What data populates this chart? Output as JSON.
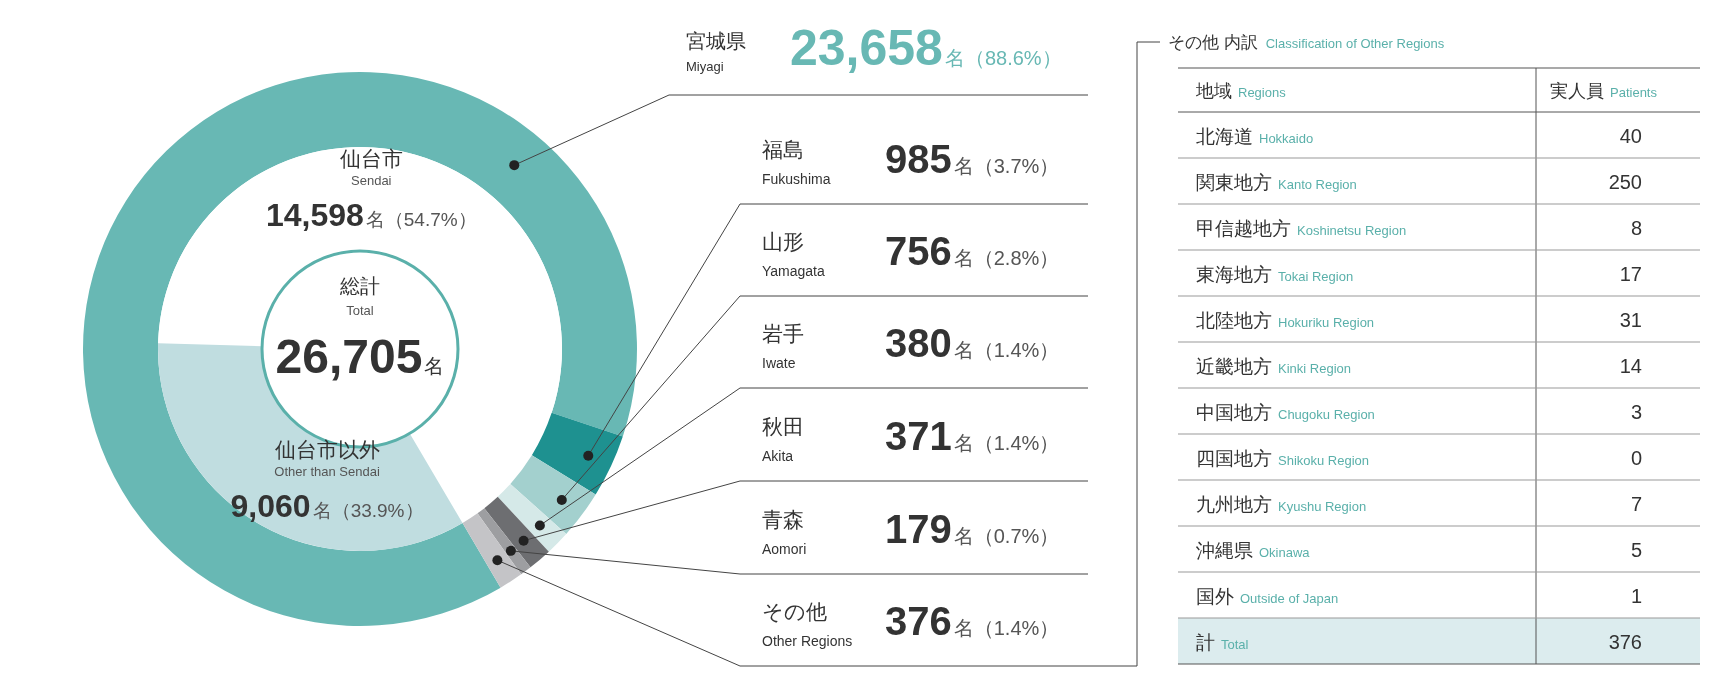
{
  "chart_data": [
    {
      "type": "donut",
      "categories": [
        "宮城県\nMiyagi",
        "福島\nFukushima",
        "山形\nYamagata",
        "岩手\nIwate",
        "秋田\nAkita",
        "青森\nAomori",
        "その他\nOther Regions"
      ],
      "values": [
        23658,
        985,
        756,
        380,
        371,
        179,
        376
      ],
      "colors": [
        "#68b8b4",
        "#1e9190",
        "#a3d0ce",
        "#d5e9e8",
        "#6d6e71",
        "#9d9ea1",
        "#c4c4c7"
      ],
      "value_labels": [
        "23,658名（88.6%）",
        "985名（3.7%）",
        "756名（2.8%）",
        "380名（1.4%）",
        "371名（1.4%）",
        "179名（0.7%）",
        "376名（1.4%）"
      ]
    },
    {
      "type": "donut",
      "categories": [
        "仙台市\nSendai",
        "仙台市以外\nOther than Sendai"
      ],
      "values": [
        14598,
        9060
      ],
      "colors": [
        "#ffffff",
        "#c0dde0"
      ],
      "value_labels": [
        "14,598名（54.7%）",
        "9,060名（33.9%）"
      ],
      "annotations": [
        "総計\nTotal",
        "26,705名"
      ]
    },
    {
      "type": "other",
      "title": "その他 内訳\nClassification of Other Regions",
      "xlabel": "地域\nRegions",
      "ylabel": "実人員\nPatients",
      "categories": [
        "北海道\nHokkaido",
        "関東地方\nKanto Region",
        "甲信越地方\nKoshinetsu Region",
        "東海地方\nTokai Region",
        "北陸地方\nHokuriku Region",
        "近畿地方\nKinki Region",
        "中国地方\nChugoku Region",
        "四国地方\nShikoku Region",
        "九州地方\nKyushu Region",
        "沖縄県\nOkinawa",
        "国外\nOutside of Japan"
      ],
      "values": [
        40,
        250,
        8,
        17,
        31,
        14,
        3,
        0,
        7,
        5,
        1
      ],
      "totals": [
        "376"
      ],
      "data_labels": true,
      "annotations": [
        "計\nTotal"
      ]
    }
  ]
}
